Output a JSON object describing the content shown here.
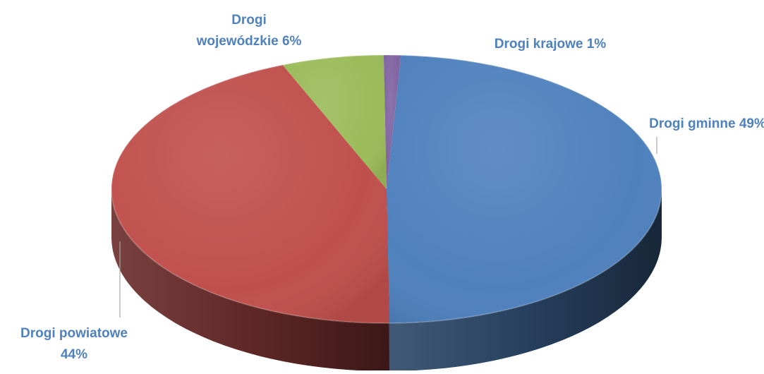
{
  "chart_data": {
    "type": "pie",
    "subtype": "3d-pie",
    "categories": [
      "Drogi gminne",
      "Drogi powiatowe",
      "Drogi wojewódzkie",
      "Drogi krajowe"
    ],
    "values": [
      49,
      44,
      6,
      1
    ],
    "unit": "%",
    "colors": [
      "#4F81BD",
      "#C0504D",
      "#9BBB59",
      "#8064A2"
    ],
    "label_color": "#4F81BD",
    "labels": [
      {
        "lines": [
          "Drogi gminne 49%"
        ]
      },
      {
        "lines": [
          "Drogi powiatowe",
          "44%"
        ]
      },
      {
        "lines": [
          "Drogi",
          "wojewódzkie 6%"
        ]
      },
      {
        "lines": [
          "Drogi krajowe 1%"
        ]
      }
    ],
    "legend": "none"
  }
}
